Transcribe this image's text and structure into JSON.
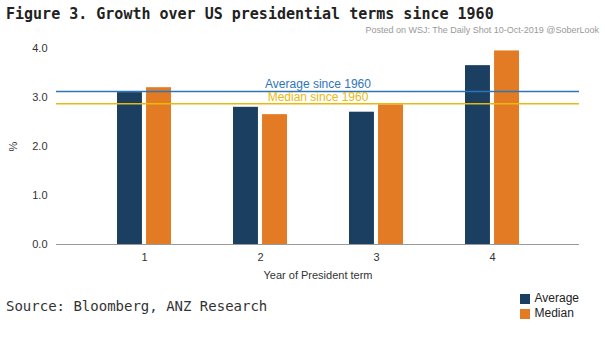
{
  "chart_data": {
    "type": "bar",
    "title": "Figure 3. Growth over US presidential terms since 1960",
    "watermark": [
      "Posted on",
      "WSJ: The Daily Shot",
      "10-Oct-2019",
      "@SoberLook"
    ],
    "x_label": "Year of President term",
    "y_label": "%",
    "source": "Source: Bloomberg, ANZ Research",
    "categories": [
      "1",
      "2",
      "3",
      "4"
    ],
    "series": [
      {
        "name": "Average",
        "color": "#1b3f61",
        "values": [
          3.1,
          2.8,
          2.7,
          3.65
        ]
      },
      {
        "name": "Median",
        "color": "#e27b24",
        "values": [
          3.2,
          2.65,
          2.85,
          3.95
        ]
      }
    ],
    "reference_lines": [
      {
        "label": "Average since 1960",
        "value": 3.12,
        "color": "#2e75b6"
      },
      {
        "label": "Median since 1960",
        "value": 2.87,
        "color": "#e8b90f"
      }
    ],
    "ylim": [
      0,
      4
    ],
    "yticks": [
      0,
      1,
      2,
      3,
      4
    ],
    "grid": false,
    "legend": "bottom-right"
  }
}
